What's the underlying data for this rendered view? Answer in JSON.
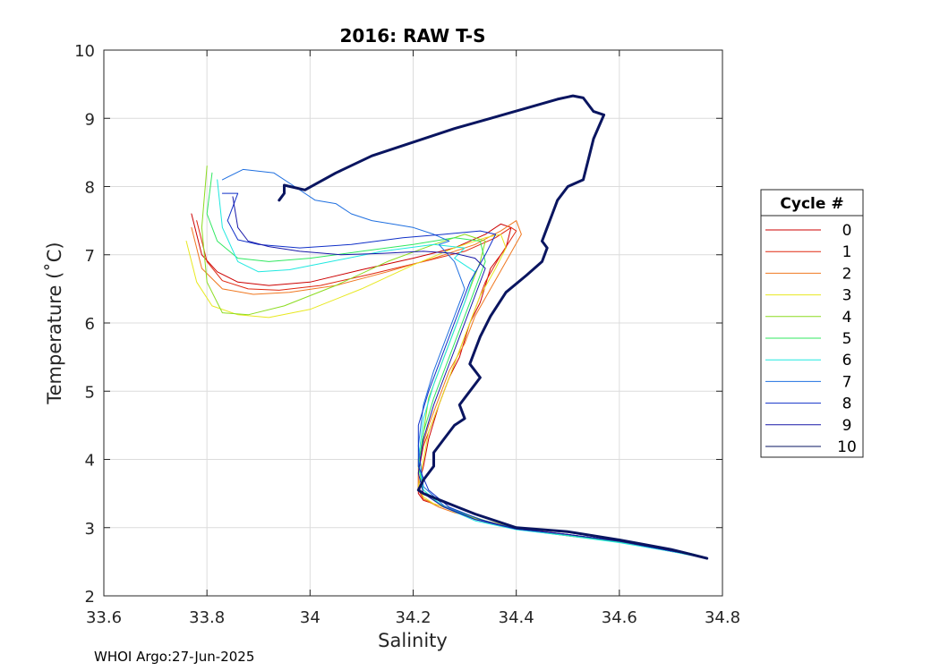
{
  "chart_data": {
    "type": "line",
    "title": "2016: RAW T-S",
    "xlabel": "Salinity",
    "ylabel": "Temperature (˚C)",
    "xlim": [
      33.6,
      34.8
    ],
    "ylim": [
      2,
      10
    ],
    "xticks": [
      33.6,
      33.8,
      34.0,
      34.2,
      34.4,
      34.6,
      34.8
    ],
    "xtick_labels": [
      "33.6",
      "33.8",
      "34",
      "34.2",
      "34.4",
      "34.6",
      "34.8"
    ],
    "yticks": [
      2,
      3,
      4,
      5,
      6,
      7,
      8,
      9,
      10
    ],
    "ytick_labels": [
      "2",
      "3",
      "4",
      "5",
      "6",
      "7",
      "8",
      "9",
      "10"
    ],
    "grid": true,
    "legend": {
      "title": "Cycle #",
      "placement": "outside-right"
    },
    "series": [
      {
        "name": "0",
        "color": "#cc0000",
        "x": [
          33.77,
          33.79,
          33.82,
          33.86,
          33.92,
          34.0,
          34.1,
          34.2,
          34.28,
          34.34,
          34.37,
          34.39,
          34.38,
          34.35,
          34.33,
          34.31,
          34.29,
          34.27,
          34.25,
          34.23,
          34.22,
          34.21,
          34.21,
          34.22,
          34.24,
          34.28,
          34.32,
          34.36,
          34.42,
          34.5,
          34.6,
          34.7,
          34.76
        ],
        "y": [
          7.6,
          7.0,
          6.75,
          6.6,
          6.55,
          6.6,
          6.78,
          6.95,
          7.1,
          7.3,
          7.45,
          7.4,
          7.1,
          6.8,
          6.3,
          6.0,
          5.5,
          5.2,
          4.8,
          4.3,
          3.9,
          3.6,
          3.5,
          3.4,
          3.35,
          3.25,
          3.15,
          3.05,
          2.97,
          2.9,
          2.8,
          2.65,
          2.58
        ]
      },
      {
        "name": "1",
        "color": "#e02810",
        "x": [
          33.78,
          33.8,
          33.83,
          33.88,
          33.94,
          34.02,
          34.12,
          34.22,
          34.3,
          34.36,
          34.39,
          34.4,
          34.37,
          34.34,
          34.32,
          34.3,
          34.28,
          34.26,
          34.24,
          34.22,
          34.21,
          34.21,
          34.22,
          34.24,
          34.28,
          34.32,
          34.36,
          34.42,
          34.5,
          34.6,
          34.7,
          34.76
        ],
        "y": [
          7.5,
          6.9,
          6.62,
          6.5,
          6.48,
          6.55,
          6.72,
          6.9,
          7.05,
          7.25,
          7.4,
          7.35,
          7.0,
          6.6,
          6.2,
          5.8,
          5.4,
          5.0,
          4.6,
          4.2,
          3.8,
          3.55,
          3.42,
          3.35,
          3.25,
          3.15,
          3.05,
          2.96,
          2.88,
          2.8,
          2.66,
          2.58
        ]
      },
      {
        "name": "2",
        "color": "#f07820",
        "x": [
          33.77,
          33.79,
          33.83,
          33.89,
          33.96,
          34.05,
          34.15,
          34.24,
          34.32,
          34.37,
          34.4,
          34.41,
          34.38,
          34.35,
          34.32,
          34.3,
          34.27,
          34.25,
          34.23,
          34.21,
          34.21,
          34.22,
          34.25,
          34.28,
          34.33,
          34.38,
          34.45,
          34.52,
          34.62,
          34.72,
          34.76
        ],
        "y": [
          7.4,
          6.8,
          6.5,
          6.42,
          6.45,
          6.55,
          6.75,
          6.95,
          7.15,
          7.35,
          7.5,
          7.3,
          6.9,
          6.5,
          6.1,
          5.7,
          5.3,
          4.9,
          4.5,
          4.0,
          3.6,
          3.42,
          3.3,
          3.22,
          3.12,
          3.02,
          2.93,
          2.86,
          2.78,
          2.65,
          2.58
        ]
      },
      {
        "name": "3",
        "color": "#e8e820",
        "x": [
          33.76,
          33.78,
          33.81,
          33.86,
          33.92,
          34.0,
          34.1,
          34.2,
          34.28,
          34.34,
          34.37,
          34.38,
          34.36,
          34.33,
          34.31,
          34.29,
          34.27,
          34.25,
          34.23,
          34.22,
          34.21,
          34.22,
          34.24,
          34.28,
          34.33,
          34.4,
          34.48,
          34.58,
          34.68,
          34.76
        ],
        "y": [
          7.2,
          6.6,
          6.25,
          6.12,
          6.08,
          6.2,
          6.5,
          6.85,
          7.1,
          7.25,
          7.3,
          7.1,
          6.8,
          6.4,
          6.0,
          5.6,
          5.2,
          4.8,
          4.4,
          4.0,
          3.6,
          3.45,
          3.35,
          3.25,
          3.12,
          3.0,
          2.9,
          2.82,
          2.7,
          2.58
        ]
      },
      {
        "name": "4",
        "color": "#8cdc20",
        "x": [
          33.8,
          33.79,
          33.8,
          33.83,
          33.88,
          33.95,
          34.05,
          34.15,
          34.24,
          34.3,
          34.34,
          34.33,
          34.31,
          34.29,
          34.27,
          34.25,
          34.23,
          34.22,
          34.21,
          34.22,
          34.25,
          34.29,
          34.34,
          34.4,
          34.48,
          34.58,
          34.68,
          34.76
        ],
        "y": [
          8.3,
          7.4,
          6.6,
          6.15,
          6.12,
          6.25,
          6.55,
          6.9,
          7.15,
          7.3,
          7.2,
          6.9,
          6.5,
          6.1,
          5.7,
          5.3,
          4.9,
          4.4,
          3.9,
          3.55,
          3.35,
          3.22,
          3.08,
          2.98,
          2.9,
          2.82,
          2.68,
          2.58
        ]
      },
      {
        "name": "5",
        "color": "#30e860",
        "x": [
          33.81,
          33.8,
          33.82,
          33.86,
          33.92,
          34.0,
          34.1,
          34.2,
          34.28,
          34.33,
          34.34,
          34.32,
          34.3,
          34.28,
          34.26,
          34.24,
          34.22,
          34.21,
          34.22,
          34.25,
          34.3,
          34.36,
          34.44,
          34.54,
          34.64,
          34.74,
          34.77
        ],
        "y": [
          8.2,
          7.6,
          7.2,
          6.95,
          6.9,
          6.95,
          7.05,
          7.15,
          7.25,
          7.2,
          6.9,
          6.5,
          6.1,
          5.7,
          5.3,
          4.9,
          4.4,
          3.9,
          3.55,
          3.35,
          3.2,
          3.05,
          2.95,
          2.85,
          2.75,
          2.62,
          2.56
        ]
      },
      {
        "name": "6",
        "color": "#20e8e0",
        "x": [
          33.82,
          33.83,
          33.86,
          33.9,
          33.96,
          34.04,
          34.14,
          34.24,
          34.3,
          34.28,
          34.32,
          34.3,
          34.28,
          34.26,
          34.24,
          34.22,
          34.21,
          34.22,
          34.26,
          34.32,
          34.4,
          34.5,
          34.6,
          34.7,
          34.77
        ],
        "y": [
          8.1,
          7.4,
          6.9,
          6.75,
          6.78,
          6.9,
          7.05,
          7.15,
          7.1,
          6.95,
          6.75,
          6.3,
          5.9,
          5.5,
          5.1,
          4.6,
          4.0,
          3.55,
          3.3,
          3.1,
          2.97,
          2.88,
          2.78,
          2.65,
          2.55
        ]
      },
      {
        "name": "7",
        "color": "#2070e0",
        "x": [
          33.83,
          33.87,
          33.93,
          33.97,
          34.01,
          34.05,
          34.08,
          34.12,
          34.16,
          34.2,
          34.24,
          34.27,
          34.25,
          34.28,
          34.3,
          34.28,
          34.26,
          34.24,
          34.22,
          34.21,
          34.22,
          34.26,
          34.32,
          34.4,
          34.5,
          34.6,
          34.7,
          34.77
        ],
        "y": [
          8.1,
          8.25,
          8.2,
          8.0,
          7.8,
          7.75,
          7.6,
          7.5,
          7.45,
          7.4,
          7.3,
          7.2,
          7.15,
          6.9,
          6.5,
          6.1,
          5.7,
          5.3,
          4.8,
          4.2,
          3.6,
          3.32,
          3.12,
          2.98,
          2.9,
          2.8,
          2.66,
          2.56
        ]
      },
      {
        "name": "8",
        "color": "#1030c8",
        "x": [
          33.83,
          33.86,
          33.84,
          33.86,
          33.9,
          33.98,
          34.08,
          34.18,
          34.26,
          34.33,
          34.36,
          34.34,
          34.31,
          34.29,
          34.27,
          34.25,
          34.23,
          34.21,
          34.21,
          34.23,
          34.27,
          34.33,
          34.4,
          34.5,
          34.6,
          34.7,
          34.77
        ],
        "y": [
          7.9,
          7.9,
          7.5,
          7.22,
          7.15,
          7.1,
          7.15,
          7.25,
          7.3,
          7.35,
          7.3,
          7.0,
          6.6,
          6.2,
          5.8,
          5.4,
          5.0,
          4.5,
          3.9,
          3.55,
          3.3,
          3.12,
          2.98,
          2.9,
          2.8,
          2.66,
          2.56
        ]
      },
      {
        "name": "9",
        "color": "#1818a8",
        "x": [
          33.85,
          33.86,
          33.88,
          33.92,
          33.98,
          34.06,
          34.14,
          34.22,
          34.28,
          34.32,
          34.34,
          34.32,
          34.3,
          34.28,
          34.26,
          34.24,
          34.22,
          34.21,
          34.22,
          34.26,
          34.32,
          34.4,
          34.5,
          34.6,
          34.7,
          34.77
        ],
        "y": [
          7.85,
          7.4,
          7.2,
          7.12,
          7.05,
          7.0,
          7.02,
          7.05,
          7.02,
          6.95,
          6.8,
          6.4,
          6.0,
          5.6,
          5.2,
          4.8,
          4.3,
          3.8,
          3.5,
          3.3,
          3.12,
          2.98,
          2.9,
          2.8,
          2.66,
          2.56
        ]
      },
      {
        "name": "10",
        "color": "#0a1560",
        "width": 3,
        "x": [
          33.94,
          33.95,
          33.95,
          33.99,
          34.05,
          34.12,
          34.2,
          34.28,
          34.35,
          34.42,
          34.48,
          34.51,
          34.53,
          34.55,
          34.57,
          34.55,
          34.54,
          34.53,
          34.5,
          34.48,
          34.47,
          34.46,
          34.45,
          34.46,
          34.45,
          34.42,
          34.38,
          34.35,
          34.33,
          34.32,
          34.31,
          34.33,
          34.31,
          34.29,
          34.3,
          34.28,
          34.27,
          34.26,
          34.24,
          34.24,
          34.22,
          34.21,
          34.22,
          34.26,
          34.32,
          34.4,
          34.5,
          34.6,
          34.7,
          34.77
        ],
        "y": [
          7.8,
          7.9,
          8.02,
          7.95,
          8.2,
          8.45,
          8.65,
          8.85,
          9.0,
          9.15,
          9.28,
          9.33,
          9.3,
          9.1,
          9.05,
          8.7,
          8.4,
          8.1,
          8.0,
          7.8,
          7.6,
          7.4,
          7.2,
          7.1,
          6.9,
          6.7,
          6.45,
          6.1,
          5.8,
          5.6,
          5.4,
          5.2,
          5.0,
          4.8,
          4.6,
          4.5,
          4.4,
          4.3,
          4.1,
          3.9,
          3.7,
          3.55,
          3.5,
          3.38,
          3.2,
          3.0,
          2.94,
          2.82,
          2.68,
          2.55
        ]
      }
    ]
  },
  "footer": {
    "credit": "WHOI Argo:27-Jun-2025"
  }
}
